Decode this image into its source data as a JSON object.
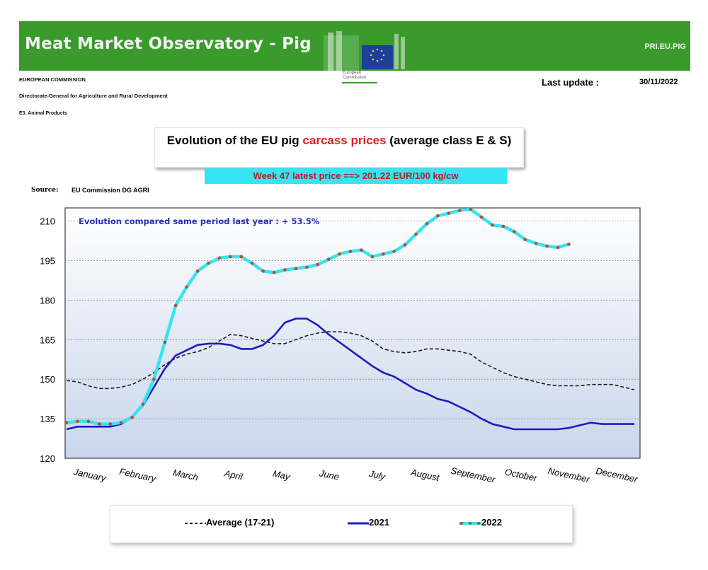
{
  "header": {
    "title": "Meat Market Observatory - Pig",
    "code": "PRI.EU.PIG",
    "logo_text_line1": "European",
    "logo_text_line2": "Commission",
    "org1": "EUROPEAN COMMISSION",
    "org2": "Directorate-General for Agriculture and Rural Development",
    "org3": "E3. Animal Products",
    "last_update_label": "Last update :",
    "last_update_date": "30/11/2022"
  },
  "title_part1": "Evolution of the EU pig ",
  "title_part2": "carcass prices",
  "title_part3": " (average class E & S)",
  "latest_price": "Week 47 latest price ==>  201.22 EUR/100 kg/cw",
  "source_label": "Source:",
  "source_value": "EU Commission DG AGRI",
  "annotation": "Evolution compared same period last year   : + 53.5%",
  "colors": {
    "banner": "#3a9a2c",
    "average": "#1a1a1a",
    "series_2021": "#1c1cc0",
    "series_2022_line": "#33e6f2",
    "series_2022_marker": "#b5502a"
  },
  "chart_data": {
    "type": "line",
    "xlabel": "",
    "ylabel": "",
    "ylim": [
      120,
      215
    ],
    "yticks": [
      120,
      135,
      150,
      165,
      180,
      195,
      210
    ],
    "x_range": [
      1,
      53
    ],
    "month_labels": [
      "January",
      "February",
      "March",
      "April",
      "May",
      "June",
      "July",
      "August",
      "September",
      "October",
      "November",
      "December"
    ],
    "grid": true,
    "legend_position": "bottom",
    "series": [
      {
        "name": "Average (17-21)",
        "style": "dashed",
        "x": [
          1,
          2,
          3,
          4,
          5,
          6,
          7,
          8,
          9,
          10,
          11,
          12,
          13,
          14,
          15,
          16,
          17,
          18,
          19,
          20,
          21,
          22,
          23,
          24,
          25,
          26,
          27,
          28,
          29,
          30,
          31,
          32,
          33,
          34,
          35,
          36,
          37,
          38,
          39,
          40,
          41,
          42,
          43,
          44,
          45,
          46,
          47,
          48,
          49,
          50,
          51,
          52,
          53
        ],
        "values": [
          149.5,
          149,
          147.5,
          146.5,
          146.5,
          147,
          148,
          150,
          152.5,
          155.5,
          158,
          159.5,
          160.5,
          162,
          164.5,
          167,
          166.5,
          165.5,
          164.5,
          163.5,
          163.5,
          165,
          166.5,
          167.5,
          168,
          168,
          167.5,
          166.5,
          164.5,
          161.5,
          160.5,
          160,
          160.5,
          161.5,
          161.5,
          161,
          160.5,
          159.5,
          156.5,
          154.5,
          152.5,
          151,
          150,
          149,
          148,
          147.5,
          147.5,
          147.5,
          148,
          148,
          148,
          147,
          146
        ]
      },
      {
        "name": "2021",
        "style": "solid",
        "x": [
          1,
          2,
          3,
          4,
          5,
          6,
          7,
          8,
          9,
          10,
          11,
          12,
          13,
          14,
          15,
          16,
          17,
          18,
          19,
          20,
          21,
          22,
          23,
          24,
          25,
          26,
          27,
          28,
          29,
          30,
          31,
          32,
          33,
          34,
          35,
          36,
          37,
          38,
          39,
          40,
          41,
          42,
          43,
          44,
          45,
          46,
          47,
          48,
          49,
          50,
          51,
          52,
          53
        ],
        "values": [
          131,
          132,
          132,
          132,
          132,
          133,
          135.5,
          140,
          147,
          154,
          159,
          161,
          163,
          163.5,
          163.5,
          163,
          161.5,
          161.5,
          163,
          166.5,
          171.5,
          173,
          173,
          170.5,
          167,
          164,
          161,
          158,
          155,
          152.5,
          151,
          148.5,
          146,
          144.5,
          142.5,
          141.5,
          139.5,
          137.5,
          135,
          133,
          132,
          131,
          131,
          131,
          131,
          131,
          131.5,
          132.5,
          133.5,
          133,
          133,
          133,
          133
        ]
      },
      {
        "name": "2022",
        "style": "solid-markers",
        "x": [
          1,
          2,
          3,
          4,
          5,
          6,
          7,
          8,
          9,
          10,
          11,
          12,
          13,
          14,
          15,
          16,
          17,
          18,
          19,
          20,
          21,
          22,
          23,
          24,
          25,
          26,
          27,
          28,
          29,
          30,
          31,
          32,
          33,
          34,
          35,
          36,
          37,
          38,
          39,
          40,
          41,
          42,
          43,
          44,
          45,
          46,
          47
        ],
        "values": [
          133.5,
          134,
          134,
          133,
          133,
          133.5,
          135.5,
          140.5,
          150,
          164,
          178,
          185,
          191,
          194,
          196,
          196.5,
          196.5,
          194,
          191,
          190.5,
          191.5,
          192,
          192.5,
          193.5,
          195.5,
          197.5,
          198.5,
          199,
          196.5,
          197.5,
          198.5,
          201,
          205,
          209,
          212,
          213,
          214,
          214.5,
          211.5,
          208.5,
          208,
          206,
          203,
          201.5,
          200.5,
          200,
          201.2
        ]
      }
    ]
  }
}
